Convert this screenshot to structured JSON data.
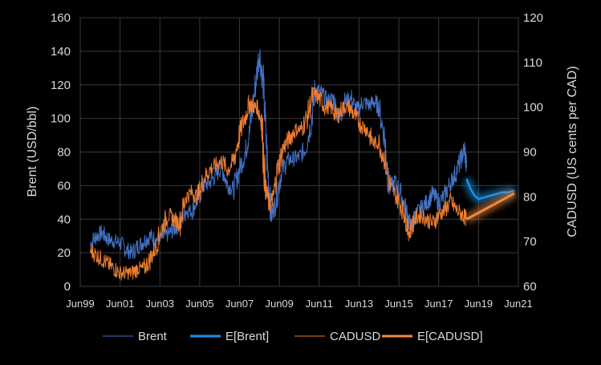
{
  "chart_data": {
    "type": "line",
    "xlabel": "",
    "ylabel_left": "Brent (USD/bbl)",
    "ylabel_right": "CADUSD (US cents per CAD)",
    "xlim": [
      1999.5,
      2021.5
    ],
    "ylim_left": [
      0,
      160
    ],
    "ylim_right": [
      60,
      120
    ],
    "yticks_left": [
      "0",
      "20",
      "40",
      "60",
      "80",
      "100",
      "120",
      "140",
      "160"
    ],
    "yticks_right": [
      "60",
      "70",
      "80",
      "90",
      "100",
      "110",
      "120"
    ],
    "xticks": [
      {
        "x": 1999.5,
        "label": "Jun99"
      },
      {
        "x": 2001.5,
        "label": "Jun01"
      },
      {
        "x": 2003.5,
        "label": "Jun03"
      },
      {
        "x": 2005.5,
        "label": "Jun05"
      },
      {
        "x": 2007.5,
        "label": "Jun07"
      },
      {
        "x": 2009.5,
        "label": "Jun09"
      },
      {
        "x": 2011.5,
        "label": "Jun11"
      },
      {
        "x": 2013.5,
        "label": "Jun13"
      },
      {
        "x": 2015.5,
        "label": "Jun15"
      },
      {
        "x": 2017.5,
        "label": "Jun17"
      },
      {
        "x": 2019.5,
        "label": "Jun19"
      },
      {
        "x": 2021.5,
        "label": "Jun21"
      }
    ],
    "grid": true,
    "legend_position": "bottom",
    "colors": {
      "brent": "#4472C4",
      "e_brent": "#1E90E8",
      "cadusd": "#ED7D31",
      "e_cadusd": "#F28A3C",
      "grid": "#3a3a3a",
      "text": "#d9d9d9"
    },
    "series": [
      {
        "name": "Brent",
        "axis": "left",
        "x": [
          2000.0,
          2000.3,
          2000.6,
          2000.9,
          2001.2,
          2001.5,
          2001.8,
          2002.1,
          2002.4,
          2002.7,
          2003.0,
          2003.3,
          2003.6,
          2003.9,
          2004.2,
          2004.5,
          2004.8,
          2005.1,
          2005.4,
          2005.7,
          2006.0,
          2006.3,
          2006.6,
          2006.9,
          2007.2,
          2007.5,
          2007.8,
          2008.0,
          2008.3,
          2008.5,
          2008.7,
          2008.9,
          2009.1,
          2009.3,
          2009.6,
          2009.9,
          2010.2,
          2010.5,
          2010.8,
          2011.1,
          2011.3,
          2011.6,
          2011.9,
          2012.2,
          2012.5,
          2012.8,
          2013.1,
          2013.4,
          2013.7,
          2014.0,
          2014.3,
          2014.5,
          2014.8,
          2015.0,
          2015.3,
          2015.6,
          2015.9,
          2016.1,
          2016.3,
          2016.6,
          2016.9,
          2017.2,
          2017.5,
          2017.8,
          2018.1,
          2018.3,
          2018.6,
          2018.8,
          2018.9
        ],
        "values": [
          25,
          30,
          32,
          28,
          27,
          26,
          22,
          20,
          24,
          27,
          30,
          28,
          29,
          31,
          34,
          38,
          45,
          45,
          52,
          60,
          62,
          66,
          72,
          60,
          58,
          70,
          80,
          92,
          120,
          140,
          118,
          72,
          42,
          50,
          68,
          75,
          76,
          77,
          82,
          98,
          118,
          115,
          110,
          112,
          100,
          110,
          112,
          104,
          110,
          108,
          110,
          106,
          88,
          58,
          62,
          55,
          44,
          34,
          42,
          46,
          50,
          55,
          50,
          54,
          62,
          66,
          75,
          82,
          70
        ]
      },
      {
        "name": "E[Brent]",
        "axis": "left",
        "x": [
          2018.9,
          2019.1,
          2019.3,
          2019.5,
          2019.8,
          2020.1,
          2020.4,
          2020.7,
          2021.0,
          2021.3
        ],
        "values": [
          64,
          58,
          54,
          52,
          53,
          54,
          55,
          56,
          56,
          57
        ]
      },
      {
        "name": "CADUSD",
        "axis": "right",
        "x": [
          2000.0,
          2000.3,
          2000.6,
          2000.9,
          2001.2,
          2001.5,
          2001.8,
          2002.1,
          2002.4,
          2002.7,
          2003.0,
          2003.3,
          2003.6,
          2003.9,
          2004.2,
          2004.5,
          2004.8,
          2005.1,
          2005.4,
          2005.7,
          2006.0,
          2006.3,
          2006.6,
          2006.9,
          2007.2,
          2007.5,
          2007.8,
          2008.0,
          2008.2,
          2008.4,
          2008.6,
          2008.8,
          2009.0,
          2009.2,
          2009.4,
          2009.7,
          2010.0,
          2010.3,
          2010.6,
          2010.9,
          2011.2,
          2011.5,
          2011.8,
          2012.1,
          2012.4,
          2012.7,
          2013.0,
          2013.3,
          2013.6,
          2013.9,
          2014.2,
          2014.5,
          2014.8,
          2015.1,
          2015.4,
          2015.7,
          2015.9,
          2016.0,
          2016.3,
          2016.6,
          2016.9,
          2017.2,
          2017.5,
          2017.8,
          2018.1,
          2018.4,
          2018.7,
          2018.9
        ],
        "values": [
          68,
          67,
          66,
          65,
          64,
          63,
          63,
          63,
          64,
          64,
          66,
          69,
          73,
          76,
          75,
          74,
          80,
          81,
          80,
          84,
          86,
          87,
          88,
          86,
          88,
          94,
          98,
          101,
          100,
          100,
          97,
          82,
          78,
          80,
          86,
          91,
          93,
          95,
          95,
          98,
          103,
          102,
          100,
          100,
          98,
          100,
          100,
          98,
          96,
          95,
          92,
          92,
          88,
          82,
          80,
          77,
          74,
          72,
          75,
          76,
          75,
          74,
          76,
          77,
          79,
          77,
          76,
          75
        ]
      },
      {
        "name": "E[CADUSD]",
        "axis": "right",
        "x": [
          2018.9,
          2019.4,
          2019.9,
          2020.4,
          2020.9,
          2021.3
        ],
        "values": [
          75,
          76.2,
          77.4,
          78.6,
          79.8,
          80.8
        ]
      }
    ]
  }
}
